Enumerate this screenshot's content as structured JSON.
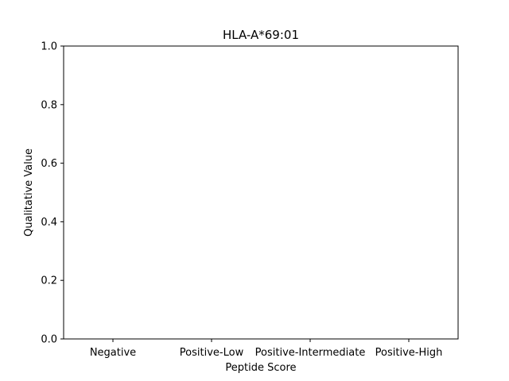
{
  "chart_data": {
    "type": "bar",
    "title": "HLA-A*69:01",
    "xlabel": "Peptide Score",
    "ylabel": "Qualitative Value",
    "categories": [
      "Negative",
      "Positive-Low",
      "Positive-Intermediate",
      "Positive-High"
    ],
    "values": [
      0,
      0,
      0,
      0
    ],
    "ylim": [
      0,
      1.0
    ],
    "yticks": [
      "0.0",
      "0.2",
      "0.4",
      "0.6",
      "0.8",
      "1.0"
    ],
    "grid": false,
    "legend": "none"
  }
}
